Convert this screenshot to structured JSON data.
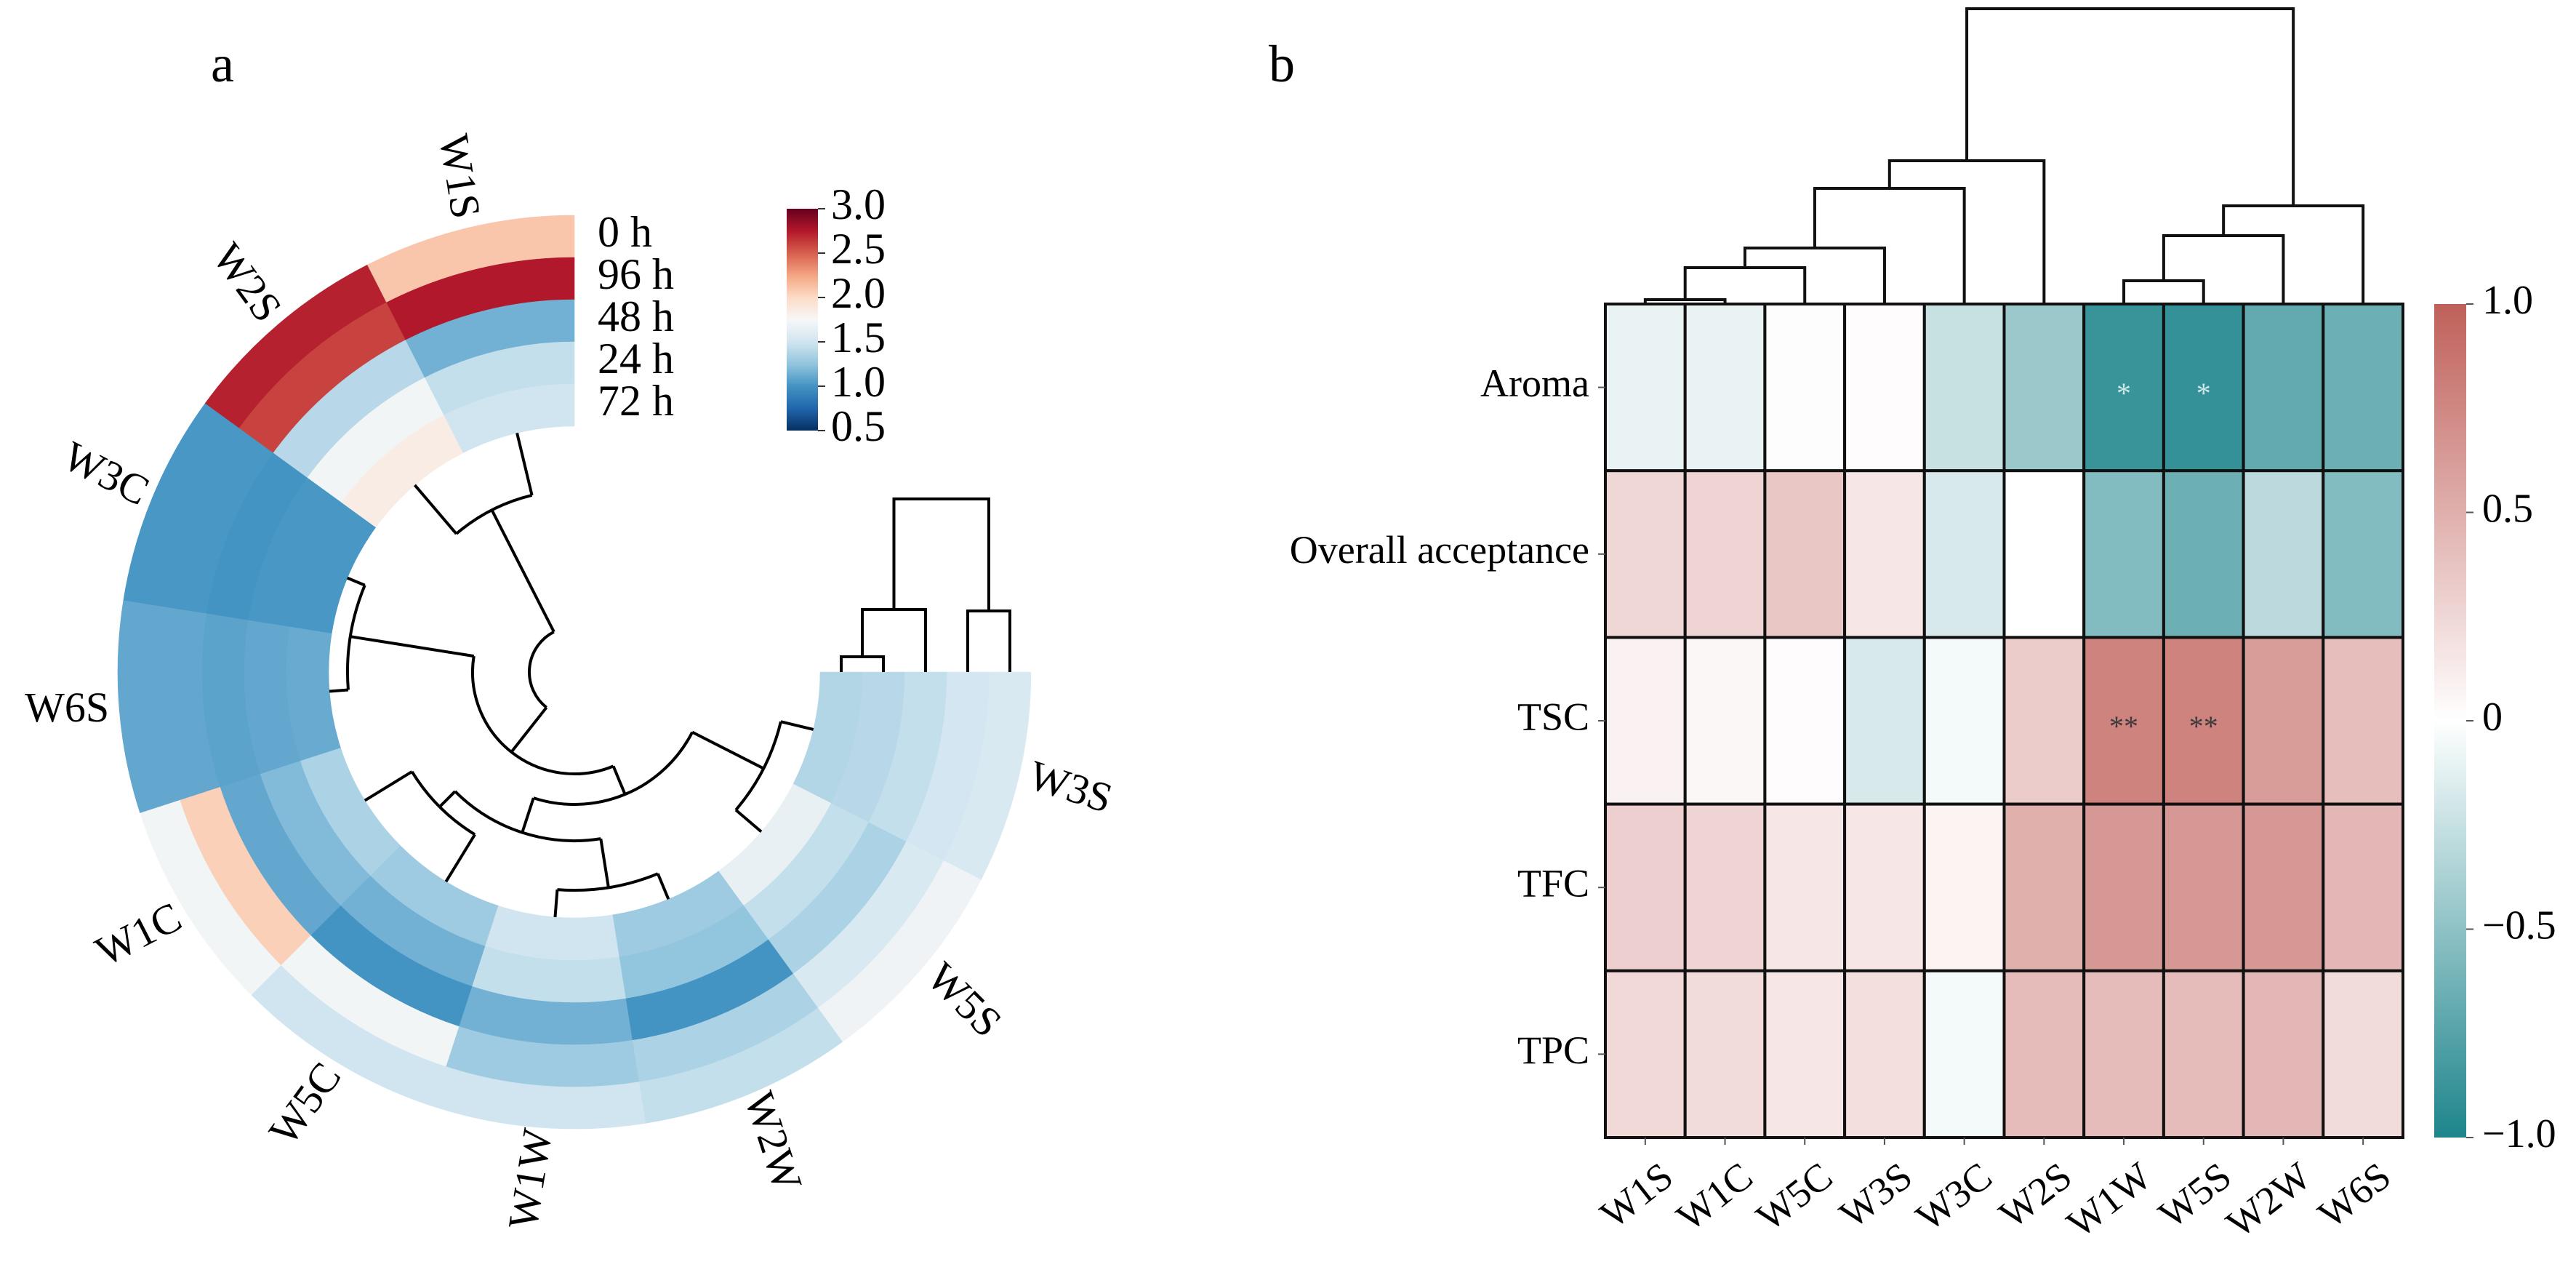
{
  "chart_data": [
    {
      "panel_label": "a",
      "type": "heatmap",
      "layout": "circular",
      "colormap": "RdBu_r",
      "samples": [
        "W1S",
        "W2S",
        "W3C",
        "W6S",
        "W1C",
        "W5C",
        "W1W",
        "W2W",
        "W5S",
        "W3S"
      ],
      "time_points": [
        "0 h",
        "96 h",
        "48 h",
        "24 h",
        "72 h"
      ],
      "values": [
        [
          2.1,
          2.72,
          1.02,
          1.1,
          1.72,
          1.5,
          1.5,
          1.45,
          1.7,
          1.55
        ],
        [
          2.75,
          2.6,
          1.02,
          1.1,
          2.05,
          1.72,
          1.3,
          1.35,
          1.55,
          1.52
        ],
        [
          1.15,
          1.4,
          1.0,
          1.08,
          1.1,
          1.0,
          1.15,
          1.0,
          1.35,
          1.45
        ],
        [
          1.45,
          1.72,
          1.02,
          1.1,
          1.2,
          1.15,
          1.45,
          1.25,
          1.45,
          1.4
        ],
        [
          1.5,
          1.85,
          1.02,
          1.12,
          1.35,
          1.3,
          1.5,
          1.3,
          1.65,
          1.38
        ]
      ],
      "colorbar": {
        "min": 0.5,
        "max": 3.0,
        "ticks": [
          3.0,
          2.5,
          2.0,
          1.5,
          1.0,
          0.5
        ],
        "tick_labels": [
          "3.0",
          "2.5",
          "2.0",
          "1.5",
          "1.0",
          "0.5"
        ]
      },
      "dendrograms": [
        "samples (radial)",
        "time points"
      ]
    },
    {
      "panel_label": "b",
      "type": "heatmap",
      "rows": [
        "Aroma",
        "Overall acceptance",
        "TSC",
        "TFC",
        "TPC"
      ],
      "columns": [
        "W1S",
        "W1C",
        "W5C",
        "W3S",
        "W3C",
        "W2S",
        "W1W",
        "W5S",
        "W2W",
        "W6S"
      ],
      "values": [
        [
          -0.1,
          -0.1,
          0.01,
          0.02,
          -0.25,
          -0.45,
          -0.88,
          -0.9,
          -0.7,
          -0.65
        ],
        [
          0.25,
          0.27,
          0.35,
          0.15,
          -0.18,
          0.0,
          -0.55,
          -0.65,
          -0.3,
          -0.55
        ],
        [
          0.08,
          0.05,
          0.02,
          -0.18,
          -0.05,
          0.32,
          0.78,
          0.78,
          0.62,
          0.4
        ],
        [
          0.3,
          0.27,
          0.15,
          0.15,
          0.07,
          0.5,
          0.65,
          0.65,
          0.65,
          0.45
        ],
        [
          0.24,
          0.22,
          0.15,
          0.2,
          -0.05,
          0.42,
          0.42,
          0.42,
          0.45,
          0.22
        ]
      ],
      "annotations": [
        {
          "row": "Aroma",
          "column": "W1W",
          "text": "*"
        },
        {
          "row": "Aroma",
          "column": "W5S",
          "text": "*"
        },
        {
          "row": "TSC",
          "column": "W1W",
          "text": "**"
        },
        {
          "row": "TSC",
          "column": "W5S",
          "text": "**"
        }
      ],
      "colorbar": {
        "min": -1.0,
        "max": 1.0,
        "ticks": [
          1.0,
          0.5,
          0,
          -0.5,
          -1.0
        ],
        "tick_labels": [
          "1.0",
          "0.5",
          "0",
          "−0.5",
          "−1.0"
        ]
      },
      "colors": {
        "low": "#1e858c",
        "mid": "#ffffff",
        "high": "#c0605a"
      },
      "dendrograms": [
        "columns (top)"
      ]
    }
  ]
}
